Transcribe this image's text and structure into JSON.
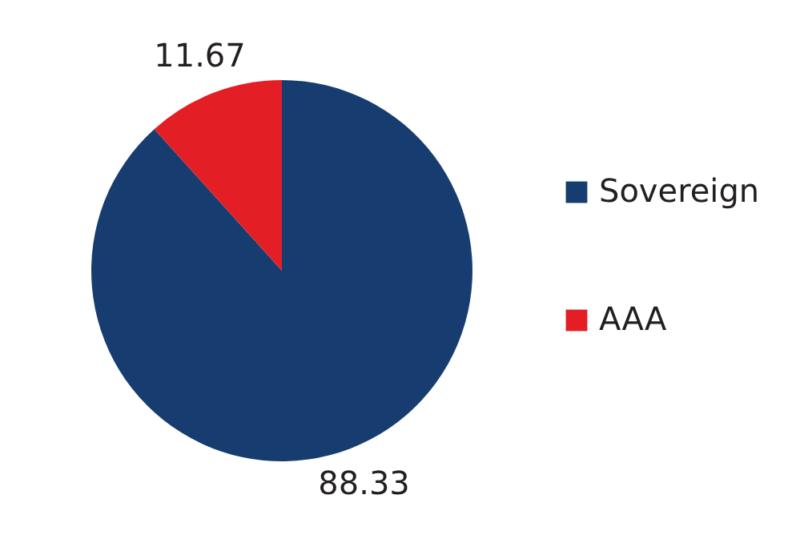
{
  "chart_data": {
    "type": "pie",
    "categories": [
      "Sovereign",
      "AAA"
    ],
    "values": [
      88.33,
      11.67
    ],
    "colors": [
      "#173d70",
      "#e31e25"
    ],
    "data_labels": true,
    "legend": "right"
  }
}
